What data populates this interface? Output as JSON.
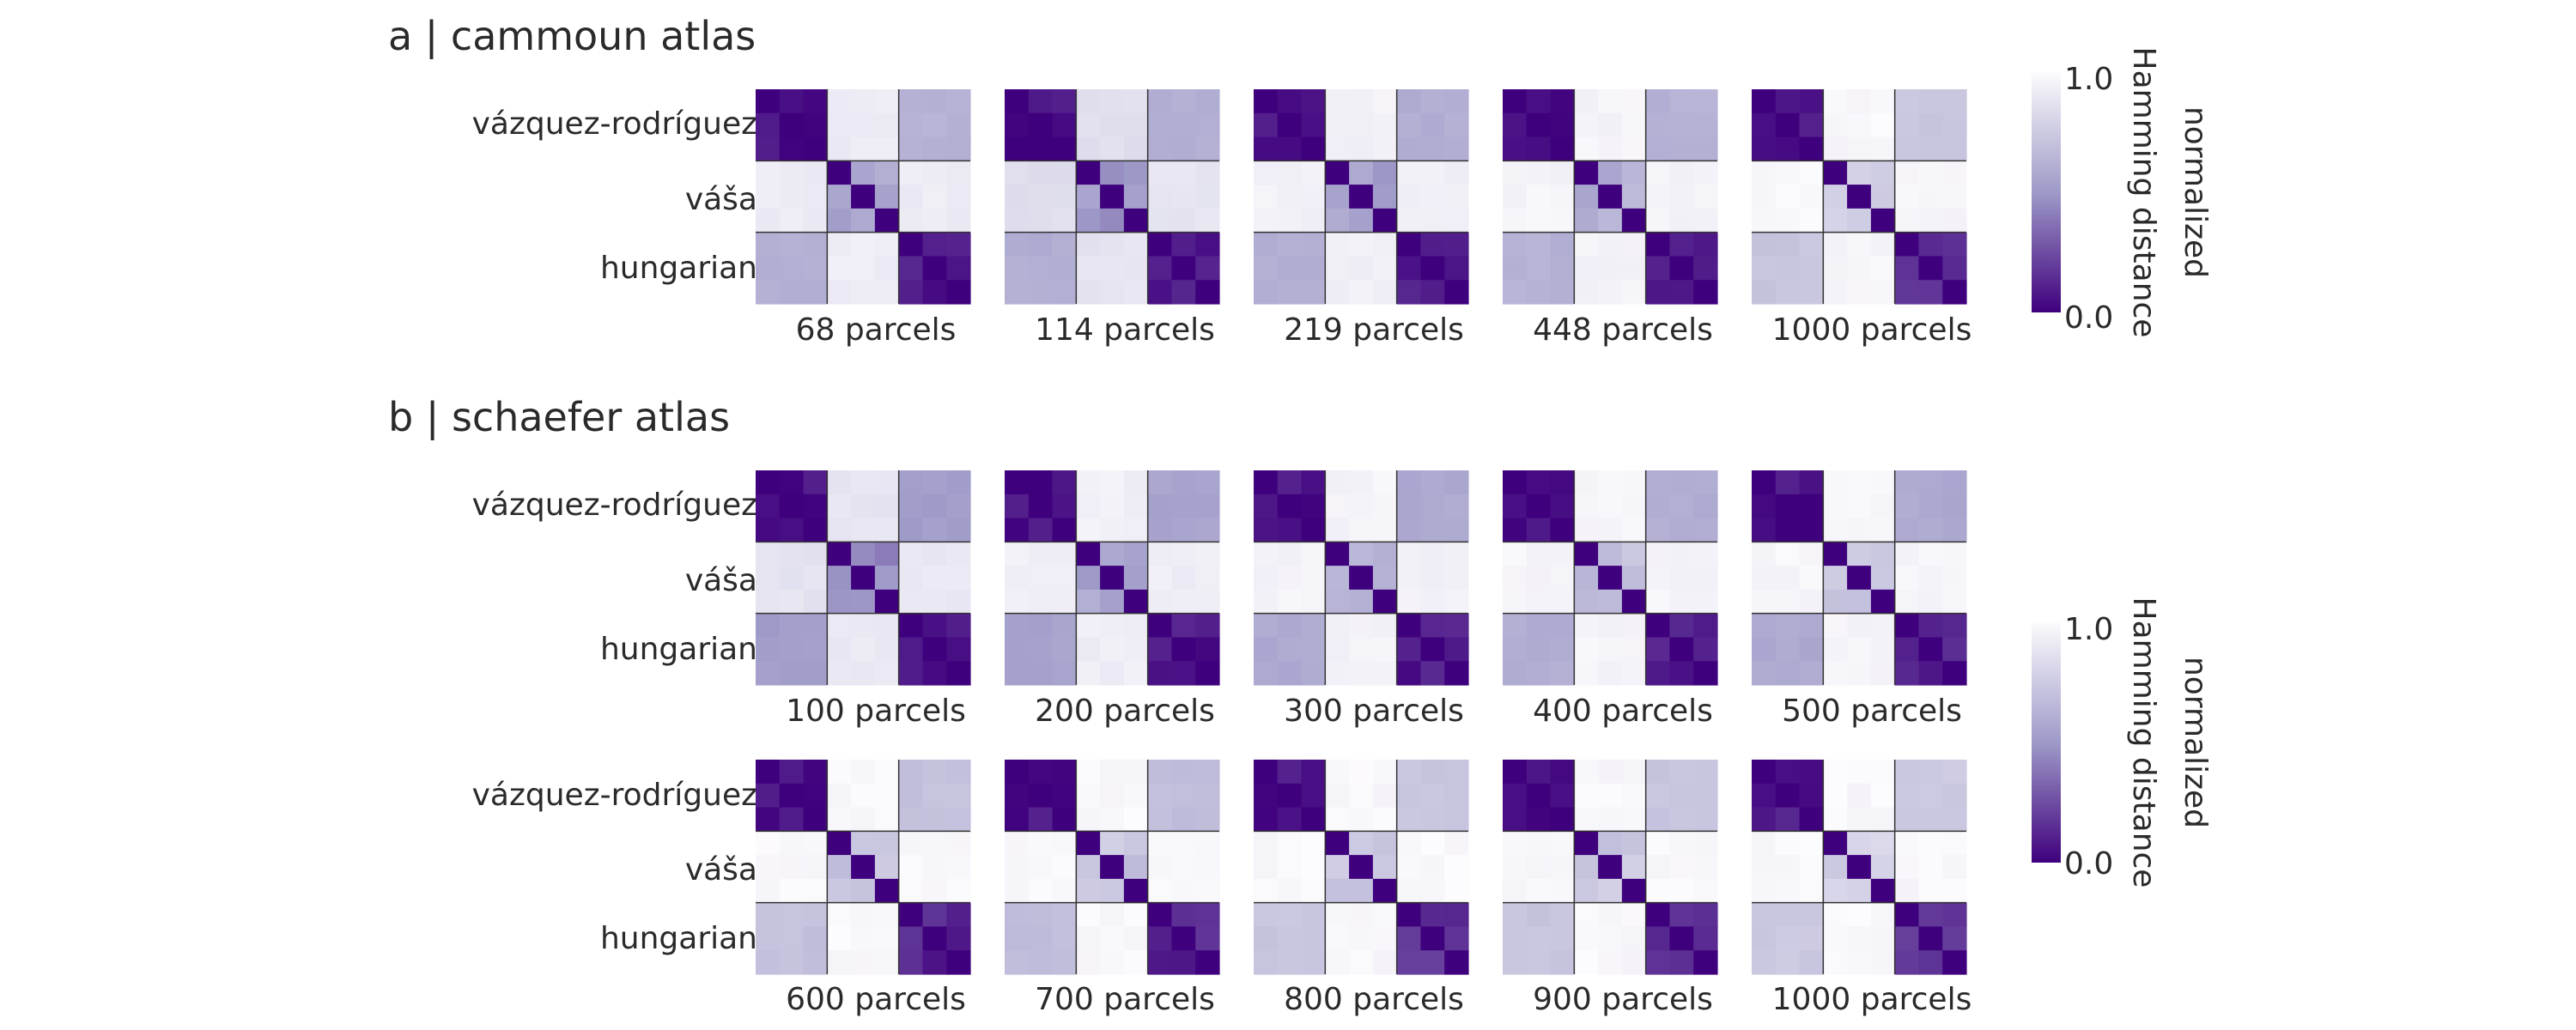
{
  "colormap": {
    "name": "purple-to-white",
    "low_color": "#3f007d",
    "mid_color": "#9e9ac8",
    "high_color": "#fcfbfd"
  },
  "methods": [
    "vázquez-rodríguez",
    "váša",
    "hungarian"
  ],
  "colorbars": [
    {
      "label_line1": "normalized",
      "label_line2": "Hamming distance",
      "min_label": "0.0",
      "max_label": "1.0"
    },
    {
      "label_line1": "normalized",
      "label_line2": "Hamming distance",
      "min_label": "0.0",
      "max_label": "1.0"
    }
  ],
  "chart_data": [
    {
      "type": "heatmap",
      "panel": "a",
      "title": "a | cammoun atlas",
      "scale": [
        0,
        1
      ],
      "rows": [
        {
          "labels": [
            "68 parcels",
            "114 parcels",
            "219 parcels",
            "448 parcels",
            "1000 parcels"
          ],
          "blocks": [
            {
              "vr_vasa": 0.92,
              "vr_hun": 0.62,
              "vasa_hun": 0.92,
              "within_vr": 0.06,
              "within_vasa": 0.55,
              "within_hun": 0.08
            },
            {
              "vr_vasa": 0.85,
              "vr_hun": 0.6,
              "vasa_hun": 0.88,
              "within_vr": 0.05,
              "within_vasa": 0.5,
              "within_hun": 0.07
            },
            {
              "vr_vasa": 0.95,
              "vr_hun": 0.6,
              "vasa_hun": 0.94,
              "within_vr": 0.05,
              "within_vasa": 0.55,
              "within_hun": 0.08
            },
            {
              "vr_vasa": 0.96,
              "vr_hun": 0.62,
              "vasa_hun": 0.95,
              "within_vr": 0.05,
              "within_vasa": 0.62,
              "within_hun": 0.09
            },
            {
              "vr_vasa": 0.98,
              "vr_hun": 0.72,
              "vasa_hun": 0.97,
              "within_vr": 0.08,
              "within_vasa": 0.75,
              "within_hun": 0.18
            }
          ]
        }
      ]
    },
    {
      "type": "heatmap",
      "panel": "b",
      "title": "b | schaefer atlas",
      "scale": [
        0,
        1
      ],
      "rows": [
        {
          "labels": [
            "100 parcels",
            "200 parcels",
            "300 parcels",
            "400 parcels",
            "500 parcels"
          ],
          "blocks": [
            {
              "vr_vasa": 0.88,
              "vr_hun": 0.52,
              "vasa_hun": 0.9,
              "within_vr": 0.05,
              "within_vasa": 0.45,
              "within_hun": 0.06
            },
            {
              "vr_vasa": 0.94,
              "vr_hun": 0.55,
              "vasa_hun": 0.93,
              "within_vr": 0.05,
              "within_vasa": 0.55,
              "within_hun": 0.07
            },
            {
              "vr_vasa": 0.96,
              "vr_hun": 0.58,
              "vasa_hun": 0.95,
              "within_vr": 0.05,
              "within_vasa": 0.65,
              "within_hun": 0.08
            },
            {
              "vr_vasa": 0.97,
              "vr_hun": 0.6,
              "vasa_hun": 0.96,
              "within_vr": 0.05,
              "within_vasa": 0.68,
              "within_hun": 0.08
            },
            {
              "vr_vasa": 0.97,
              "vr_hun": 0.58,
              "vasa_hun": 0.96,
              "within_vr": 0.05,
              "within_vasa": 0.7,
              "within_hun": 0.1
            }
          ]
        },
        {
          "labels": [
            "600 parcels",
            "700 parcels",
            "800 parcels",
            "900 parcels",
            "1000 parcels"
          ],
          "blocks": [
            {
              "vr_vasa": 0.98,
              "vr_hun": 0.7,
              "vasa_hun": 0.98,
              "within_vr": 0.06,
              "within_vasa": 0.72,
              "within_hun": 0.12
            },
            {
              "vr_vasa": 0.98,
              "vr_hun": 0.68,
              "vasa_hun": 0.98,
              "within_vr": 0.06,
              "within_vasa": 0.72,
              "within_hun": 0.12
            },
            {
              "vr_vasa": 0.98,
              "vr_hun": 0.72,
              "vasa_hun": 0.98,
              "within_vr": 0.06,
              "within_vasa": 0.75,
              "within_hun": 0.15
            },
            {
              "vr_vasa": 0.98,
              "vr_hun": 0.72,
              "vasa_hun": 0.98,
              "within_vr": 0.06,
              "within_vasa": 0.75,
              "within_hun": 0.15
            },
            {
              "vr_vasa": 0.98,
              "vr_hun": 0.74,
              "vasa_hun": 0.98,
              "within_vr": 0.08,
              "within_vasa": 0.78,
              "within_hun": 0.2
            }
          ]
        }
      ]
    }
  ]
}
